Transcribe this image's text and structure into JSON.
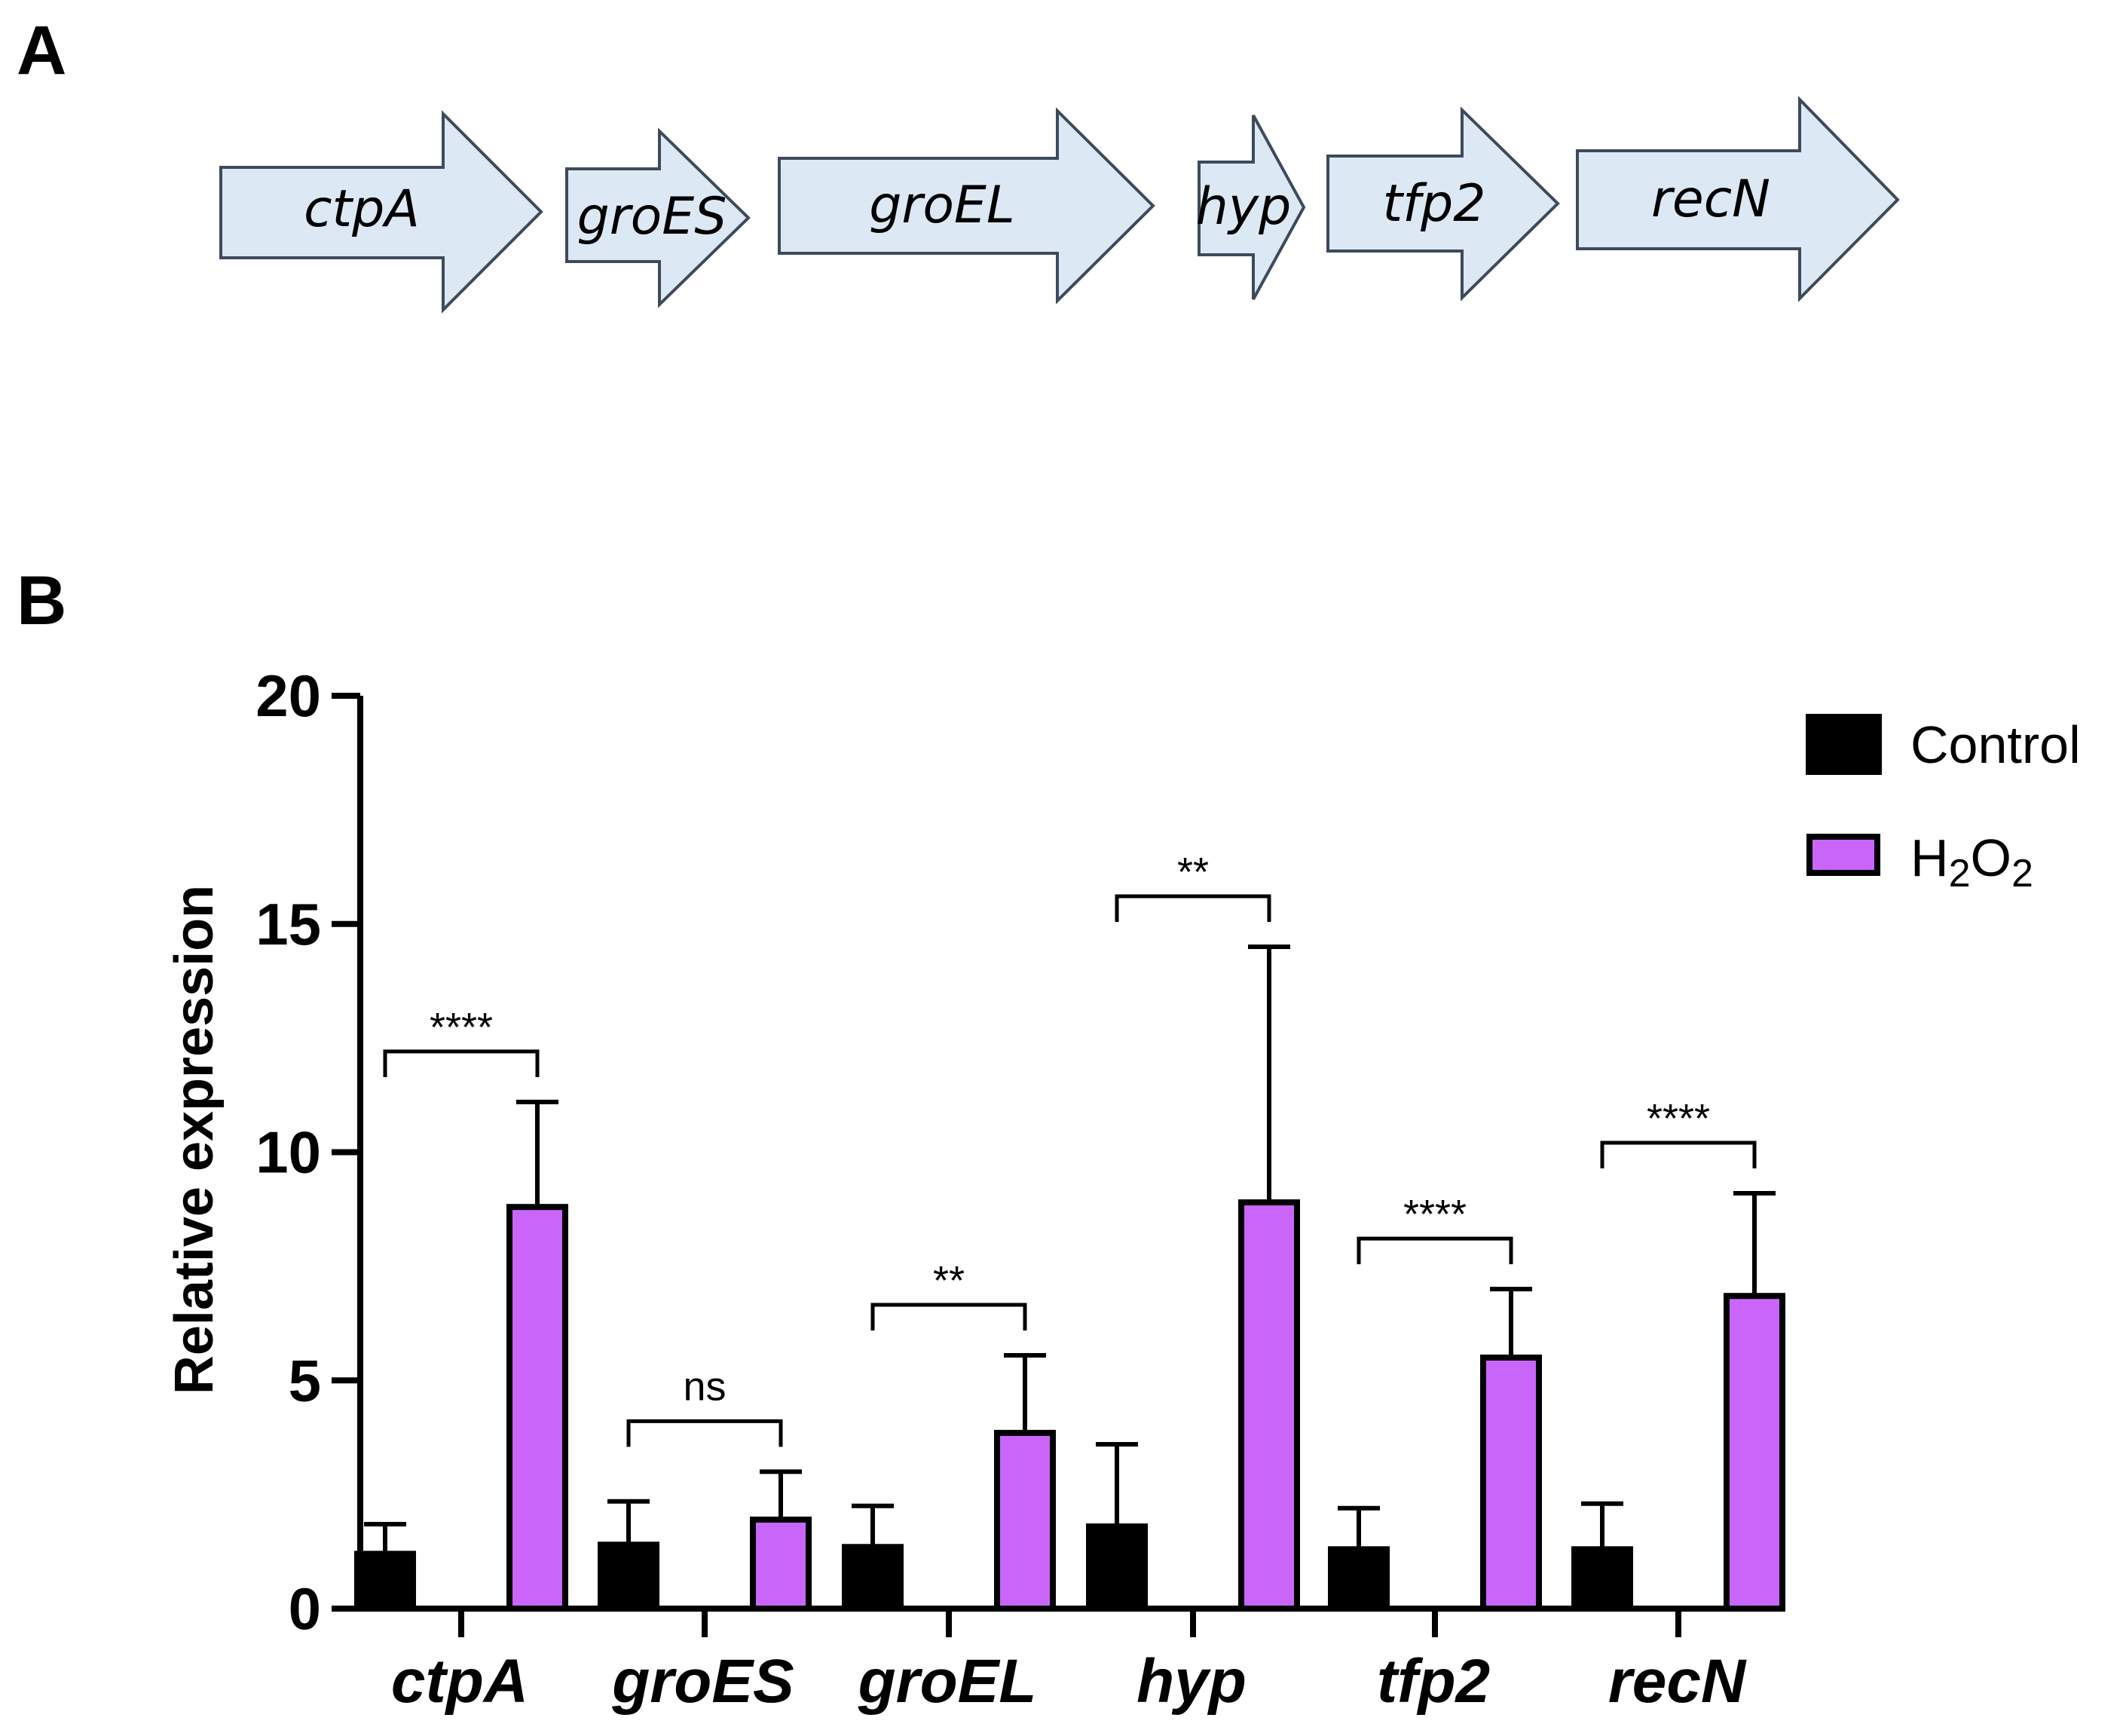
{
  "panels": {
    "a": "A",
    "b": "B"
  },
  "operon": {
    "genes": [
      "ctpA",
      "groES",
      "groEL",
      "hyp",
      "tfp2",
      "recN"
    ],
    "fill": "#dde8f5",
    "stroke": "#3e4a5c"
  },
  "chart_data": {
    "type": "bar",
    "title": "",
    "xlabel": "",
    "ylabel": "Relative expression",
    "ylim": [
      0,
      20
    ],
    "yticks": [
      0,
      5,
      10,
      15,
      20
    ],
    "categories": [
      "ctpA",
      "groES",
      "groEL",
      "hyp",
      "tfp2",
      "recN"
    ],
    "series": [
      {
        "name": "Control",
        "color": "#000000",
        "values": [
          1.2,
          1.4,
          1.35,
          1.8,
          1.3,
          1.3
        ],
        "errors": [
          0.65,
          0.95,
          0.9,
          1.8,
          0.9,
          1.0
        ]
      },
      {
        "name": "H₂O₂",
        "color": "#c966f9",
        "values": [
          8.8,
          1.95,
          3.85,
          8.9,
          5.5,
          6.85
        ],
        "errors": [
          2.3,
          1.05,
          1.7,
          5.6,
          1.5,
          2.25
        ]
      }
    ],
    "significance": [
      "****",
      "ns",
      "**",
      "**",
      "****",
      "****"
    ],
    "legend": {
      "position": "top-right",
      "labels": [
        "Control",
        "H",
        "2",
        "O",
        "2"
      ]
    }
  }
}
